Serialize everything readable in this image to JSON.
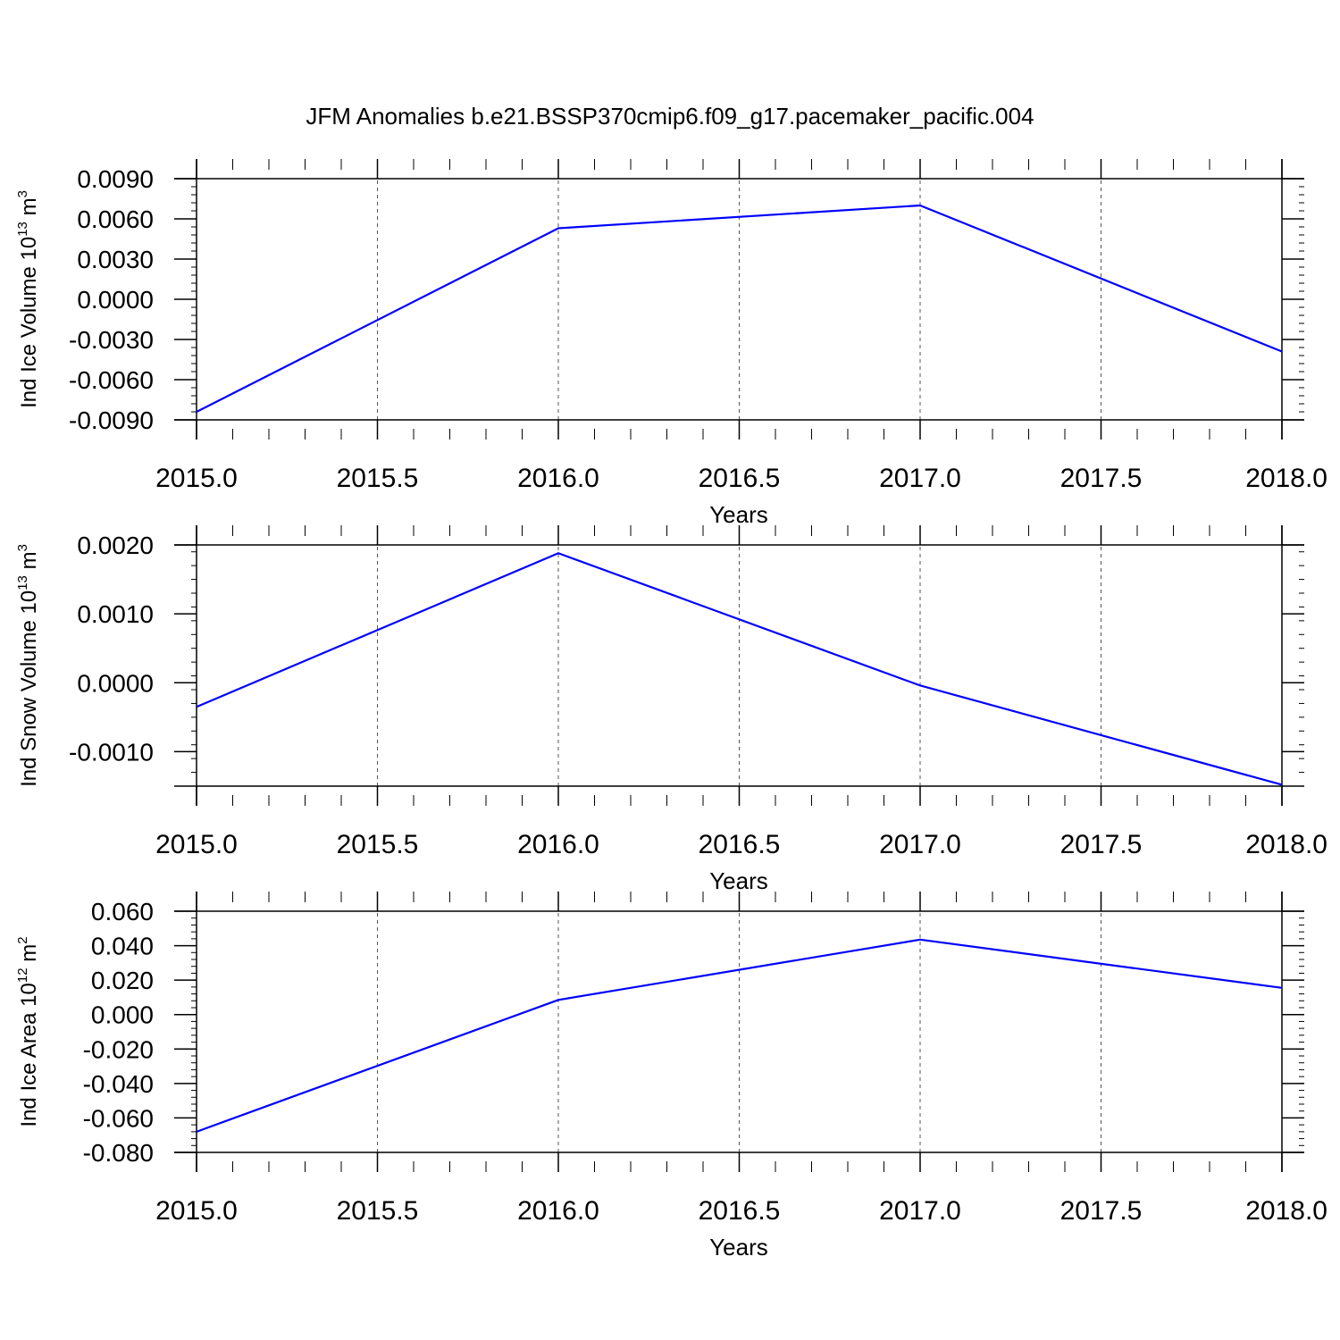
{
  "title": "JFM Anomalies b.e21.BSSP370cmip6.f09_g17.pacemaker_pacific.004",
  "colors": {
    "line": "#0000ff",
    "axis": "#000000",
    "grid": "#555555"
  },
  "chart_data": [
    {
      "type": "line",
      "x": [
        2015.0,
        2016.0,
        2017.0,
        2018.0
      ],
      "series": [
        {
          "values": [
            -0.0084,
            0.0053,
            0.007,
            -0.0039
          ]
        }
      ],
      "xlabel": "Years",
      "ylabel": {
        "text": "Ind Ice Volume 10",
        "exp": "13",
        "unit": " m",
        "unit_exp": "3"
      },
      "xlim": [
        2015.0,
        2018.0
      ],
      "ylim": [
        -0.009,
        0.009
      ],
      "xticks": [
        "2015.0",
        "2015.5",
        "2016.0",
        "2016.5",
        "2017.0",
        "2017.5",
        "2018.0"
      ],
      "yticks": [
        "0.0090",
        "0.0060",
        "0.0030",
        "0.0000",
        "-0.0030",
        "-0.0060",
        "-0.0090"
      ],
      "ytick_values": [
        0.009,
        0.006,
        0.003,
        0.0,
        -0.003,
        -0.006,
        -0.009
      ],
      "grid": "vertical dashed"
    },
    {
      "type": "line",
      "x": [
        2015.0,
        2016.0,
        2017.0,
        2018.0
      ],
      "series": [
        {
          "values": [
            -0.00035,
            0.00188,
            -4e-05,
            -0.00148
          ]
        }
      ],
      "xlabel": "Years",
      "ylabel": {
        "text": "Ind Snow Volume 10",
        "exp": "13",
        "unit": " m",
        "unit_exp": "3"
      },
      "xlim": [
        2015.0,
        2018.0
      ],
      "ylim": [
        -0.0015,
        0.002
      ],
      "xticks": [
        "2015.0",
        "2015.5",
        "2016.0",
        "2016.5",
        "2017.0",
        "2017.5",
        "2018.0"
      ],
      "yticks": [
        "0.0020",
        "0.0010",
        "0.0000",
        "-0.0010"
      ],
      "ytick_values": [
        0.002,
        0.001,
        0.0,
        -0.001
      ],
      "grid": "vertical dashed"
    },
    {
      "type": "line",
      "x": [
        2015.0,
        2016.0,
        2017.0,
        2018.0
      ],
      "series": [
        {
          "values": [
            -0.068,
            0.0085,
            0.0435,
            0.0155
          ]
        }
      ],
      "xlabel": "Years",
      "ylabel": {
        "text": "Ind Ice Area 10",
        "exp": "12",
        "unit": " m",
        "unit_exp": "2"
      },
      "xlim": [
        2015.0,
        2018.0
      ],
      "ylim": [
        -0.08,
        0.06
      ],
      "xticks": [
        "2015.0",
        "2015.5",
        "2016.0",
        "2016.5",
        "2017.0",
        "2017.5",
        "2018.0"
      ],
      "yticks": [
        "0.060",
        "0.040",
        "0.020",
        "0.000",
        "-0.020",
        "-0.040",
        "-0.060",
        "-0.080"
      ],
      "ytick_values": [
        0.06,
        0.04,
        0.02,
        0.0,
        -0.02,
        -0.04,
        -0.06,
        -0.08
      ],
      "grid": "vertical dashed"
    }
  ]
}
